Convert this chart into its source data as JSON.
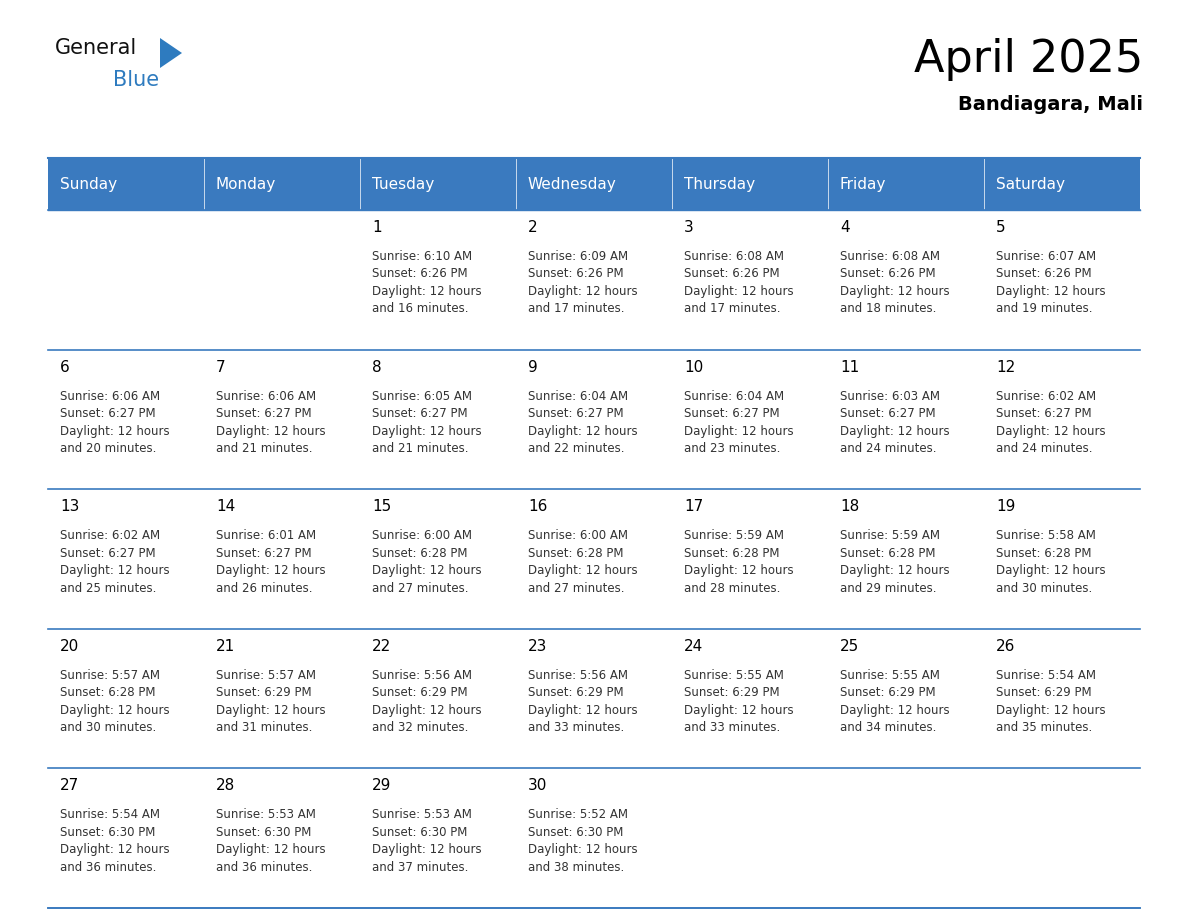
{
  "title": "April 2025",
  "subtitle": "Bandiagara, Mali",
  "header_color": "#3a7abf",
  "header_text_color": "#ffffff",
  "border_color": "#3a7abf",
  "text_color": "#333333",
  "day_names": [
    "Sunday",
    "Monday",
    "Tuesday",
    "Wednesday",
    "Thursday",
    "Friday",
    "Saturday"
  ],
  "days": [
    {
      "date": 1,
      "col": 2,
      "row": 0,
      "sunrise": "6:10 AM",
      "sunset": "6:26 PM",
      "daylight": "12 hours",
      "daylight2": "and 16 minutes."
    },
    {
      "date": 2,
      "col": 3,
      "row": 0,
      "sunrise": "6:09 AM",
      "sunset": "6:26 PM",
      "daylight": "12 hours",
      "daylight2": "and 17 minutes."
    },
    {
      "date": 3,
      "col": 4,
      "row": 0,
      "sunrise": "6:08 AM",
      "sunset": "6:26 PM",
      "daylight": "12 hours",
      "daylight2": "and 17 minutes."
    },
    {
      "date": 4,
      "col": 5,
      "row": 0,
      "sunrise": "6:08 AM",
      "sunset": "6:26 PM",
      "daylight": "12 hours",
      "daylight2": "and 18 minutes."
    },
    {
      "date": 5,
      "col": 6,
      "row": 0,
      "sunrise": "6:07 AM",
      "sunset": "6:26 PM",
      "daylight": "12 hours",
      "daylight2": "and 19 minutes."
    },
    {
      "date": 6,
      "col": 0,
      "row": 1,
      "sunrise": "6:06 AM",
      "sunset": "6:27 PM",
      "daylight": "12 hours",
      "daylight2": "and 20 minutes."
    },
    {
      "date": 7,
      "col": 1,
      "row": 1,
      "sunrise": "6:06 AM",
      "sunset": "6:27 PM",
      "daylight": "12 hours",
      "daylight2": "and 21 minutes."
    },
    {
      "date": 8,
      "col": 2,
      "row": 1,
      "sunrise": "6:05 AM",
      "sunset": "6:27 PM",
      "daylight": "12 hours",
      "daylight2": "and 21 minutes."
    },
    {
      "date": 9,
      "col": 3,
      "row": 1,
      "sunrise": "6:04 AM",
      "sunset": "6:27 PM",
      "daylight": "12 hours",
      "daylight2": "and 22 minutes."
    },
    {
      "date": 10,
      "col": 4,
      "row": 1,
      "sunrise": "6:04 AM",
      "sunset": "6:27 PM",
      "daylight": "12 hours",
      "daylight2": "and 23 minutes."
    },
    {
      "date": 11,
      "col": 5,
      "row": 1,
      "sunrise": "6:03 AM",
      "sunset": "6:27 PM",
      "daylight": "12 hours",
      "daylight2": "and 24 minutes."
    },
    {
      "date": 12,
      "col": 6,
      "row": 1,
      "sunrise": "6:02 AM",
      "sunset": "6:27 PM",
      "daylight": "12 hours",
      "daylight2": "and 24 minutes."
    },
    {
      "date": 13,
      "col": 0,
      "row": 2,
      "sunrise": "6:02 AM",
      "sunset": "6:27 PM",
      "daylight": "12 hours",
      "daylight2": "and 25 minutes."
    },
    {
      "date": 14,
      "col": 1,
      "row": 2,
      "sunrise": "6:01 AM",
      "sunset": "6:27 PM",
      "daylight": "12 hours",
      "daylight2": "and 26 minutes."
    },
    {
      "date": 15,
      "col": 2,
      "row": 2,
      "sunrise": "6:00 AM",
      "sunset": "6:28 PM",
      "daylight": "12 hours",
      "daylight2": "and 27 minutes."
    },
    {
      "date": 16,
      "col": 3,
      "row": 2,
      "sunrise": "6:00 AM",
      "sunset": "6:28 PM",
      "daylight": "12 hours",
      "daylight2": "and 27 minutes."
    },
    {
      "date": 17,
      "col": 4,
      "row": 2,
      "sunrise": "5:59 AM",
      "sunset": "6:28 PM",
      "daylight": "12 hours",
      "daylight2": "and 28 minutes."
    },
    {
      "date": 18,
      "col": 5,
      "row": 2,
      "sunrise": "5:59 AM",
      "sunset": "6:28 PM",
      "daylight": "12 hours",
      "daylight2": "and 29 minutes."
    },
    {
      "date": 19,
      "col": 6,
      "row": 2,
      "sunrise": "5:58 AM",
      "sunset": "6:28 PM",
      "daylight": "12 hours",
      "daylight2": "and 30 minutes."
    },
    {
      "date": 20,
      "col": 0,
      "row": 3,
      "sunrise": "5:57 AM",
      "sunset": "6:28 PM",
      "daylight": "12 hours",
      "daylight2": "and 30 minutes."
    },
    {
      "date": 21,
      "col": 1,
      "row": 3,
      "sunrise": "5:57 AM",
      "sunset": "6:29 PM",
      "daylight": "12 hours",
      "daylight2": "and 31 minutes."
    },
    {
      "date": 22,
      "col": 2,
      "row": 3,
      "sunrise": "5:56 AM",
      "sunset": "6:29 PM",
      "daylight": "12 hours",
      "daylight2": "and 32 minutes."
    },
    {
      "date": 23,
      "col": 3,
      "row": 3,
      "sunrise": "5:56 AM",
      "sunset": "6:29 PM",
      "daylight": "12 hours",
      "daylight2": "and 33 minutes."
    },
    {
      "date": 24,
      "col": 4,
      "row": 3,
      "sunrise": "5:55 AM",
      "sunset": "6:29 PM",
      "daylight": "12 hours",
      "daylight2": "and 33 minutes."
    },
    {
      "date": 25,
      "col": 5,
      "row": 3,
      "sunrise": "5:55 AM",
      "sunset": "6:29 PM",
      "daylight": "12 hours",
      "daylight2": "and 34 minutes."
    },
    {
      "date": 26,
      "col": 6,
      "row": 3,
      "sunrise": "5:54 AM",
      "sunset": "6:29 PM",
      "daylight": "12 hours",
      "daylight2": "and 35 minutes."
    },
    {
      "date": 27,
      "col": 0,
      "row": 4,
      "sunrise": "5:54 AM",
      "sunset": "6:30 PM",
      "daylight": "12 hours",
      "daylight2": "and 36 minutes."
    },
    {
      "date": 28,
      "col": 1,
      "row": 4,
      "sunrise": "5:53 AM",
      "sunset": "6:30 PM",
      "daylight": "12 hours",
      "daylight2": "and 36 minutes."
    },
    {
      "date": 29,
      "col": 2,
      "row": 4,
      "sunrise": "5:53 AM",
      "sunset": "6:30 PM",
      "daylight": "12 hours",
      "daylight2": "and 37 minutes."
    },
    {
      "date": 30,
      "col": 3,
      "row": 4,
      "sunrise": "5:52 AM",
      "sunset": "6:30 PM",
      "daylight": "12 hours",
      "daylight2": "and 38 minutes."
    }
  ],
  "fig_width": 11.88,
  "fig_height": 9.18,
  "logo_general_color": "#111111",
  "logo_blue_color": "#2e7bbf",
  "logo_triangle_color": "#2e7bbf"
}
